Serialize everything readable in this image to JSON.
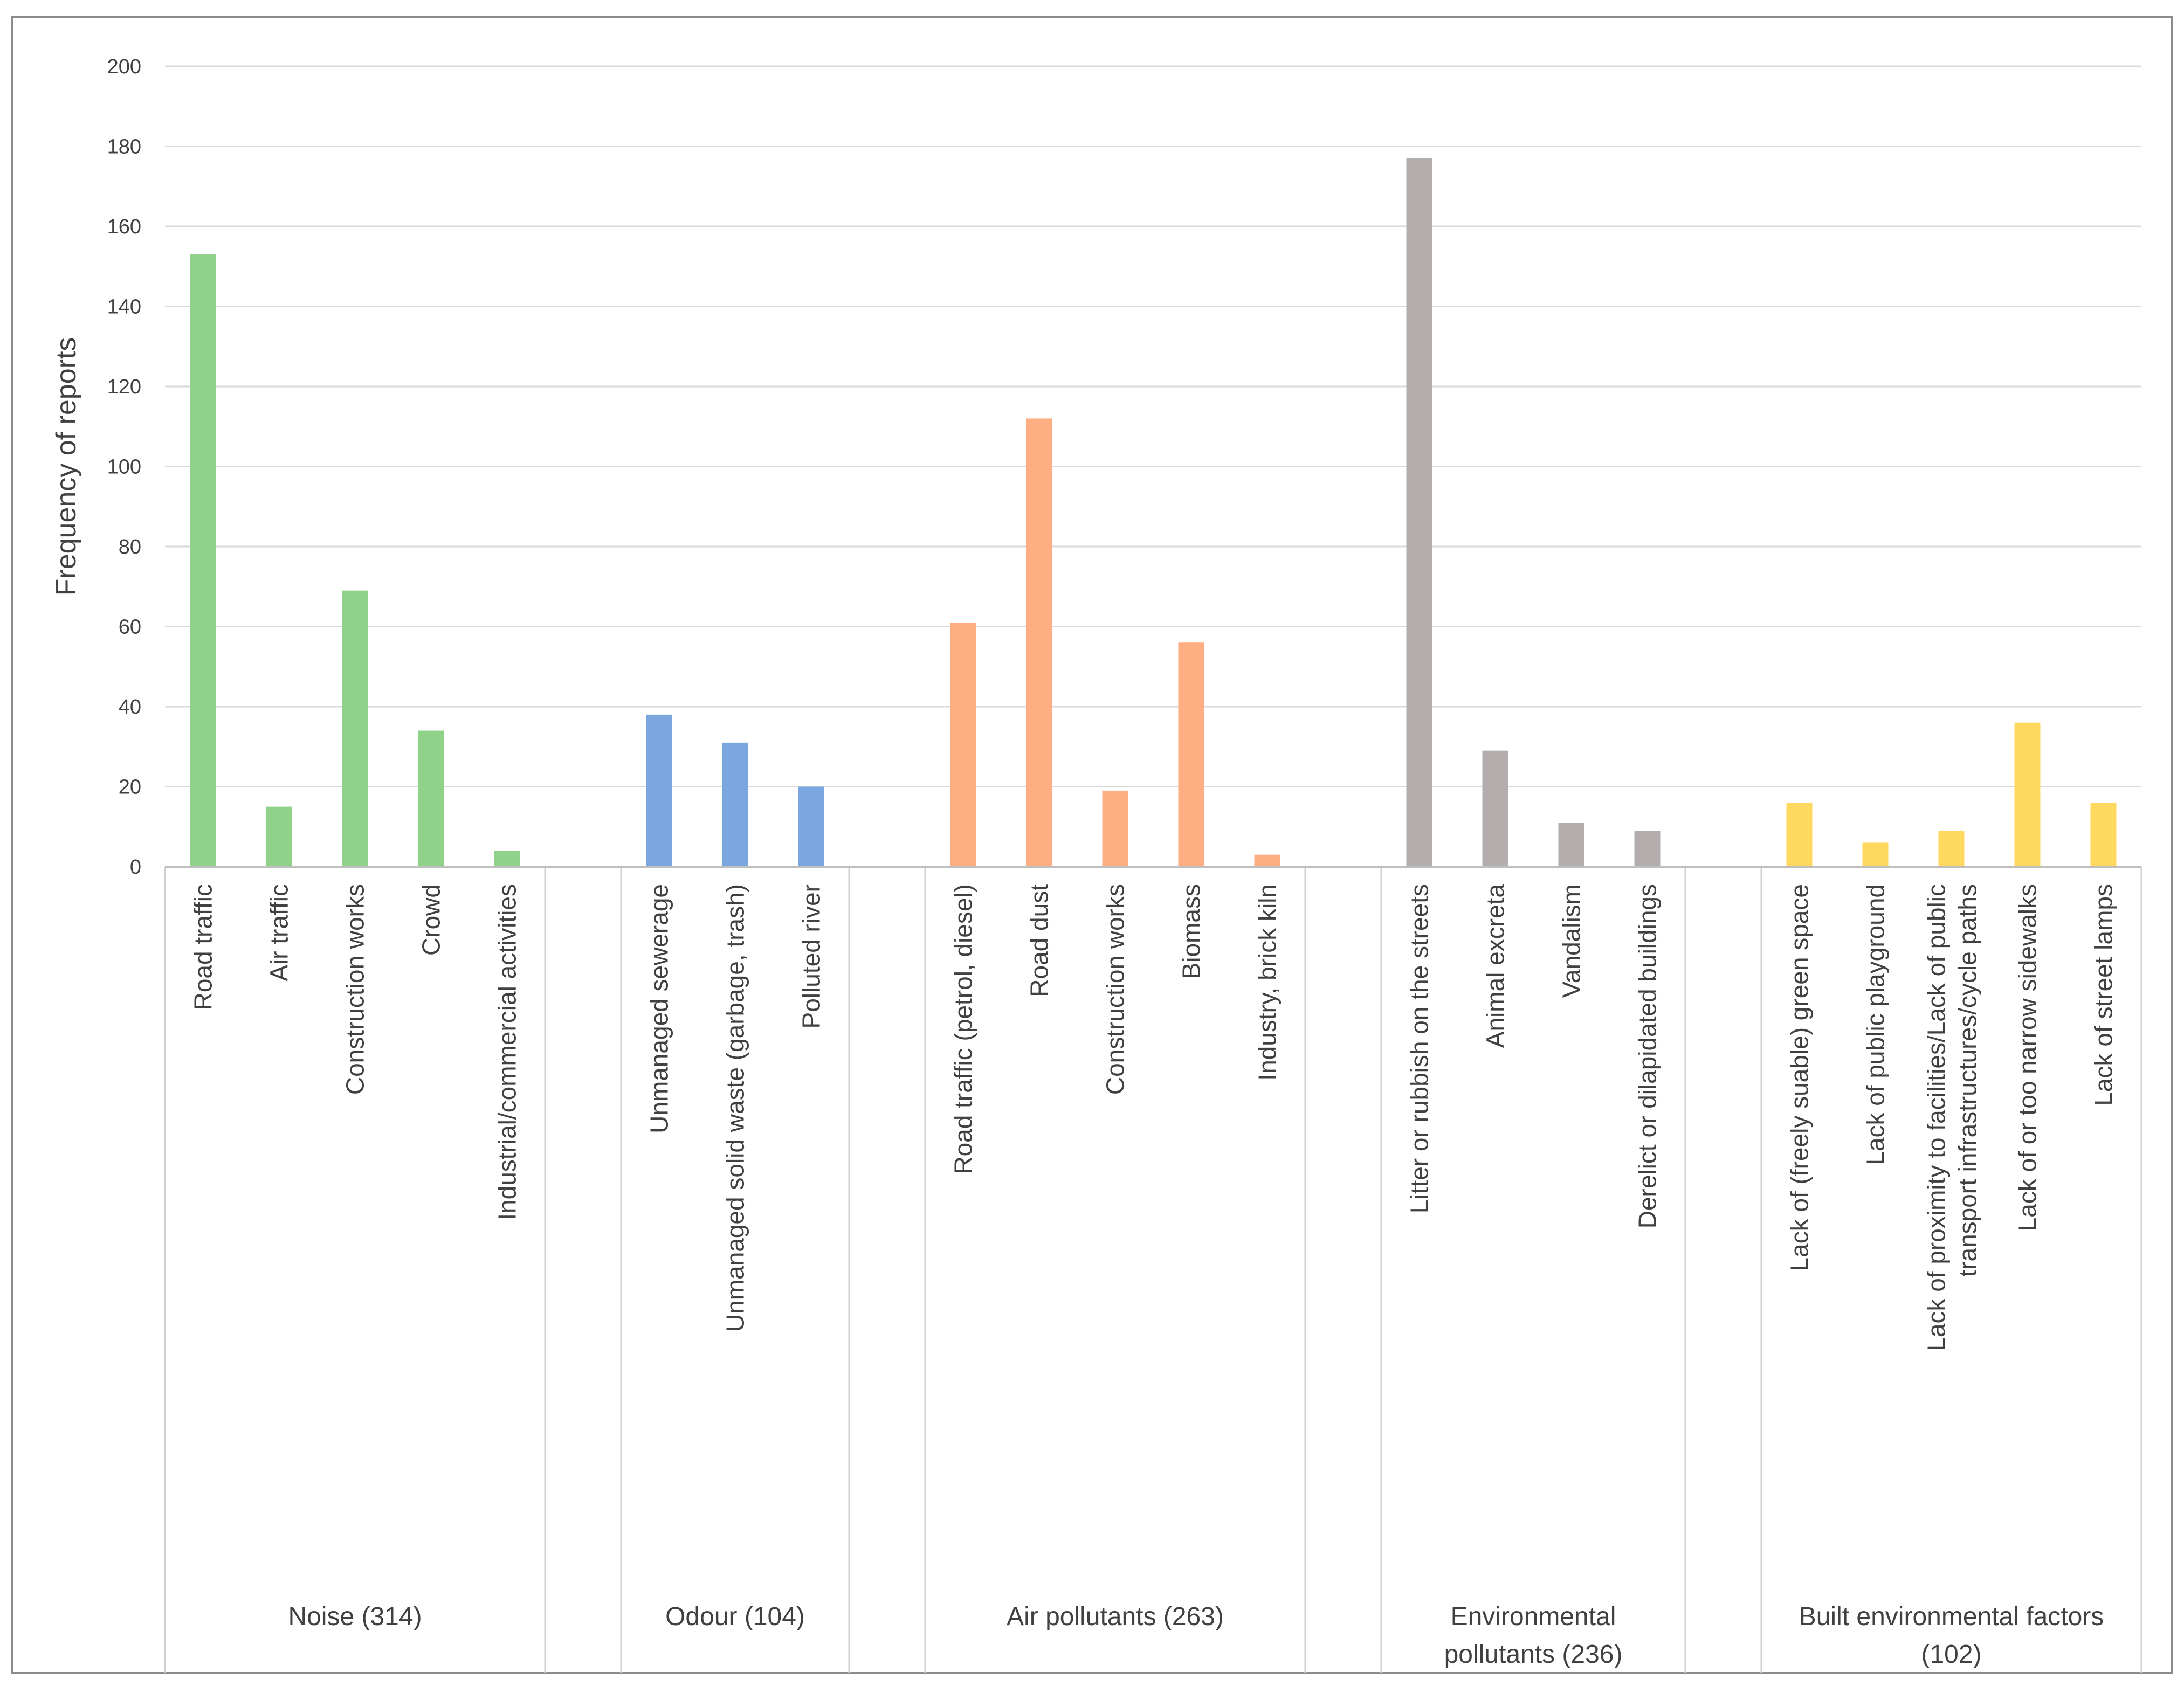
{
  "chart_data": {
    "type": "bar",
    "ylabel": "Frequency of reports",
    "xlabel": "",
    "ylim": [
      0,
      200
    ],
    "yticks": [
      0,
      20,
      40,
      60,
      80,
      100,
      120,
      140,
      160,
      180,
      200
    ],
    "grid": true,
    "groups": [
      {
        "name": "Noise (314)",
        "color": "#8fd38a",
        "categories": [
          {
            "label": "Road traffic",
            "value": 153
          },
          {
            "label": "Air traffic",
            "value": 15
          },
          {
            "label": "Construction works",
            "value": 69
          },
          {
            "label": "Crowd",
            "value": 34
          },
          {
            "label": "Industrial/commercial activities",
            "value": 4
          }
        ]
      },
      {
        "name": "Odour (104)",
        "color": "#7aa7e0",
        "categories": [
          {
            "label": "Unmanaged sewerage",
            "value": 38
          },
          {
            "label": "Unmanaged solid waste (garbage, trash)",
            "value": 31
          },
          {
            "label": "Polluted river",
            "value": 20
          }
        ]
      },
      {
        "name": "Air pollutants (263)",
        "color": "#ffae84",
        "categories": [
          {
            "label": "Road traffic (petrol, diesel)",
            "value": 61
          },
          {
            "label": "Road dust",
            "value": 112
          },
          {
            "label": "Construction works",
            "value": 19
          },
          {
            "label": "Biomass",
            "value": 56
          },
          {
            "label": "Industry, brick kiln",
            "value": 3
          }
        ]
      },
      {
        "name": "Environmental pollutants (236)",
        "color": "#b4adad",
        "categories": [
          {
            "label": "Litter or rubbish on the streets",
            "value": 177
          },
          {
            "label": "Animal excreta",
            "value": 29
          },
          {
            "label": "Vandalism",
            "value": 11
          },
          {
            "label": "Derelict or dilapidated buildings",
            "value": 9
          }
        ]
      },
      {
        "name": "Built environmental factors (102)",
        "color": "#ffd860",
        "categories": [
          {
            "label": "Lack of (freely suable) green space",
            "value": 16
          },
          {
            "label": "Lack of public playground",
            "value": 6
          },
          {
            "label": "Lack of proximity to facilities/Lack of public transport infrastructures/cycle paths",
            "value": 9
          },
          {
            "label": "Lack of or too narrow sidewalks",
            "value": 36
          },
          {
            "label": "Lack of street lamps",
            "value": 16
          }
        ]
      }
    ]
  }
}
